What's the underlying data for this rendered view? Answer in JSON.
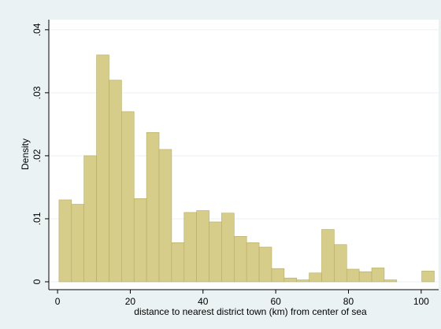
{
  "chart_data": {
    "type": "histogram",
    "xlabel": "distance to nearest district town (km) from center of sea",
    "ylabel": "Density",
    "bins": [
      0.4,
      3.84,
      7.28,
      10.72,
      14.16,
      17.6,
      21.04,
      24.48,
      27.92,
      31.36,
      34.8,
      38.24,
      41.68,
      45.12,
      48.56,
      52,
      55.44,
      58.88,
      62.32,
      65.76,
      69.2,
      72.64,
      76.08,
      79.52,
      82.96,
      86.4,
      89.84,
      93.28,
      96.72,
      100.16,
      103.6
    ],
    "values": [
      0.013,
      0.0123,
      0.02,
      0.036,
      0.032,
      0.027,
      0.0132,
      0.0237,
      0.021,
      0.0062,
      0.011,
      0.0113,
      0.0095,
      0.0109,
      0.0072,
      0.0062,
      0.0055,
      0.0021,
      0.0006,
      0.0003,
      0.0014,
      0.0083,
      0.0059,
      0.002,
      0.0016,
      0.0022,
      0.0003,
      0,
      0,
      0.0017
    ],
    "color": "#d7cd8a",
    "xlim": [
      -2.4,
      104.8
    ],
    "xticks": [
      0,
      20,
      40,
      60,
      80,
      100
    ],
    "ylim": [
      -0.00125,
      0.0416
    ],
    "yticks": [
      {
        "value": 0,
        "label": "0"
      },
      {
        "value": 0.01,
        "label": ".01"
      },
      {
        "value": 0.02,
        "label": ".02"
      },
      {
        "value": 0.03,
        "label": ".03"
      },
      {
        "value": 0.04,
        "label": ".04"
      }
    ],
    "grid": true
  }
}
